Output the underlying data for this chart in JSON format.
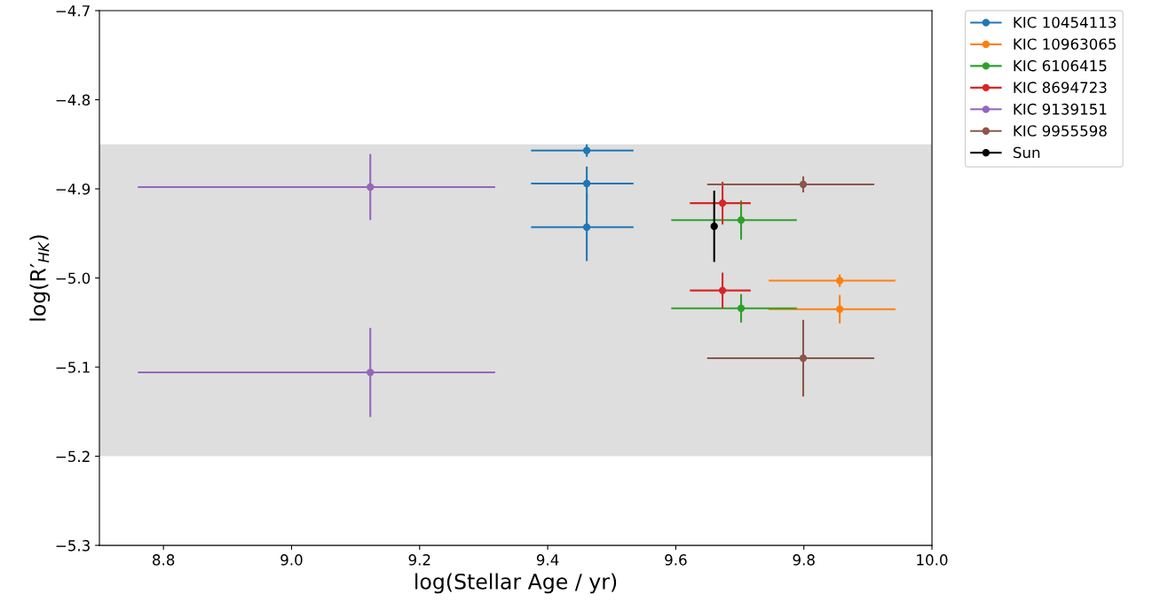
{
  "chart_data": {
    "type": "scatter",
    "xlabel": "log(Stellar Age / yr)",
    "ylabel": "log(R′$_{HK}$)",
    "xlim": [
      8.7,
      10.0
    ],
    "xticks": [
      8.8,
      {
        "value": 9.0,
        "label": "9.0"
      },
      9.2,
      9.4,
      9.6,
      9.8,
      {
        "value": 10.0,
        "label": "10.0"
      }
    ],
    "ylim": [
      -5.3,
      -4.7
    ],
    "yticks": [
      -5.3,
      -5.2,
      -5.1,
      {
        "value": -5.0,
        "label": "−5.0"
      },
      -4.9,
      -4.8,
      -4.7
    ],
    "bands": [
      {
        "axis": "y",
        "from": -5.2,
        "to": -4.85,
        "color": "#dedede"
      }
    ],
    "legend": "top right",
    "marker": "circle",
    "grid": false,
    "series": [
      {
        "name": "KIC 10454113",
        "color": "#1f77b4",
        "x": [
          9.461,
          9.461,
          9.461
        ],
        "values": [
          -4.857,
          -4.894,
          -4.943
        ],
        "errors": [
          0.007,
          0.019,
          0.038
        ],
        "xerrors": [
          [
            9.374,
            9.534
          ],
          [
            9.374,
            9.534
          ],
          [
            9.374,
            9.534
          ]
        ]
      },
      {
        "name": "KIC 10963065",
        "color": "#ff7f0e",
        "x": [
          9.856,
          9.856
        ],
        "values": [
          -5.003,
          -5.035
        ],
        "errors": [
          0.007,
          0.016
        ],
        "xerrors": [
          [
            9.745,
            9.943
          ],
          [
            9.745,
            9.943
          ]
        ]
      },
      {
        "name": "KIC 6106415",
        "color": "#2ca02c",
        "x": [
          9.702,
          9.702
        ],
        "values": [
          -4.935,
          -5.034
        ],
        "errors": [
          0.022,
          0.016
        ],
        "xerrors": [
          [
            9.593,
            9.789
          ],
          [
            9.593,
            9.789
          ]
        ]
      },
      {
        "name": "KIC 8694723",
        "color": "#d62728",
        "x": [
          9.673,
          9.673
        ],
        "values": [
          -4.916,
          -5.014
        ],
        "errors": [
          0.024,
          0.02
        ],
        "xerrors": [
          [
            9.622,
            9.717
          ],
          [
            9.622,
            9.717
          ]
        ]
      },
      {
        "name": "KIC 9139151",
        "color": "#9467bd",
        "x": [
          9.123,
          9.123
        ],
        "values": [
          -4.898,
          -5.106
        ],
        "errors": [
          0.037,
          0.05
        ],
        "xerrors": [
          [
            8.76,
            9.318
          ],
          [
            8.76,
            9.318
          ]
        ]
      },
      {
        "name": "KIC 9955598",
        "color": "#8c564b",
        "x": [
          9.799,
          9.799
        ],
        "values": [
          -4.895,
          -5.09
        ],
        "errors": [
          0.009,
          0.043
        ],
        "xerrors": [
          [
            9.649,
            9.91
          ],
          [
            9.649,
            9.91
          ]
        ]
      },
      {
        "name": "Sun",
        "color": "#000000",
        "x": [
          9.66
        ],
        "values": [
          -4.942
        ],
        "errors": [
          0.04
        ]
      }
    ]
  }
}
